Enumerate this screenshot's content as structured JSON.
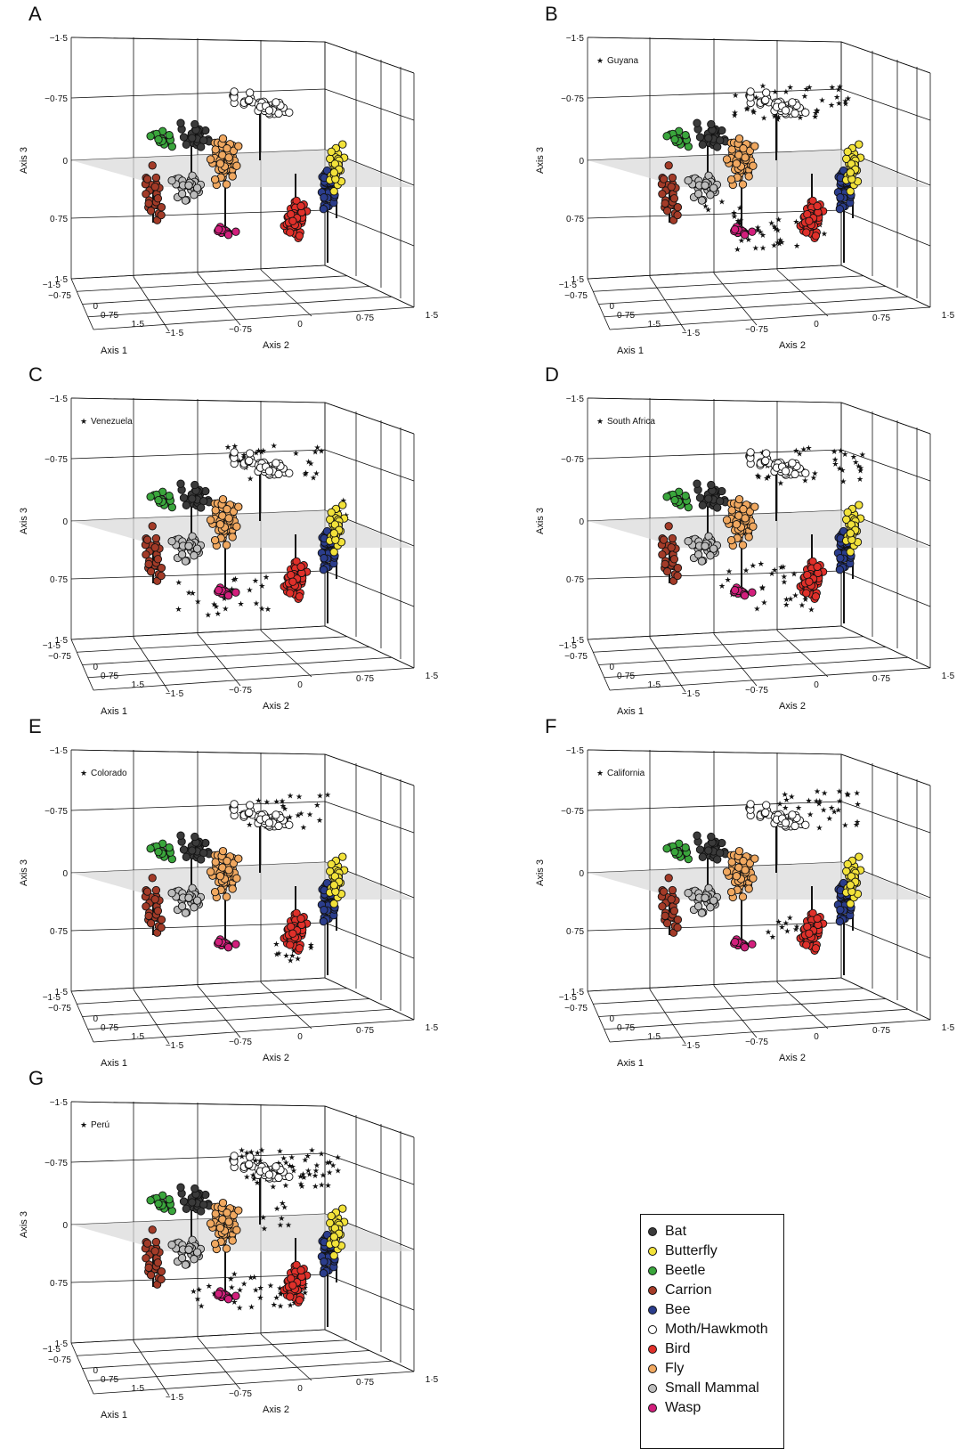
{
  "chart_data": {
    "type": "scatter",
    "axis_labels": {
      "x": "Axis 1",
      "y": "Axis 2",
      "z": "Axis 3"
    },
    "axis3_ticks": [
      "−1·5",
      "−0·75",
      "0",
      "0·75",
      "1·5"
    ],
    "axis1_ticks": [
      "−1·5",
      "−0·75",
      "0",
      "0·75",
      "1·5"
    ],
    "axis2_ticks": [
      "−1·5",
      "−0·75",
      "0",
      "0·75",
      "1·5"
    ],
    "axis_range": [
      -1.5,
      1.5
    ],
    "legend_placement": "bottom-right",
    "groups": [
      {
        "name": "Bat",
        "color": "#3a3a3a"
      },
      {
        "name": "Butterfly",
        "color": "#f2e23a"
      },
      {
        "name": "Beetle",
        "color": "#3aa63c"
      },
      {
        "name": "Carrion",
        "color": "#a33b28"
      },
      {
        "name": "Bee",
        "color": "#2b3d8c"
      },
      {
        "name": "Moth/Hawkmoth",
        "color": "#ffffff"
      },
      {
        "name": "Bird",
        "color": "#e0302a"
      },
      {
        "name": "Fly",
        "color": "#f0a860"
      },
      {
        "name": "Small Mammal",
        "color": "#bdbdbd"
      },
      {
        "name": "Wasp",
        "color": "#d21f7c"
      }
    ],
    "panels": [
      {
        "letter": "A",
        "site": ""
      },
      {
        "letter": "B",
        "site": "Guyana"
      },
      {
        "letter": "C",
        "site": "Venezuela"
      },
      {
        "letter": "D",
        "site": "South Africa"
      },
      {
        "letter": "E",
        "site": "Colorado"
      },
      {
        "letter": "F",
        "site": "California"
      },
      {
        "letter": "G",
        "site": "Perú"
      }
    ]
  }
}
